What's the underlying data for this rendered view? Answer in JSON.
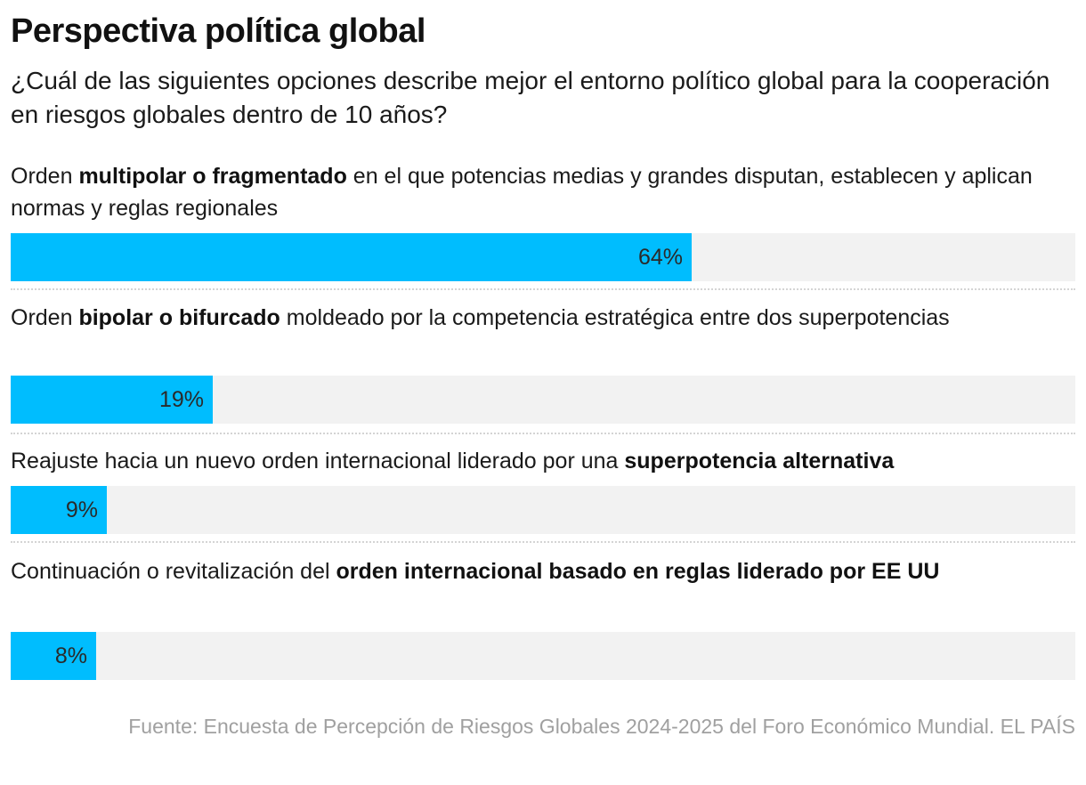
{
  "chart_data": {
    "type": "bar",
    "orientation": "horizontal",
    "title": "Perspectiva política global",
    "subtitle": "¿Cuál de las siguientes opciones describe mejor el entorno político global para la cooperación en riesgos globales dentro de 10 años?",
    "categories": [
      "Orden multipolar o fragmentado en el que potencias medias y grandes disputan, establecen y aplican normas y reglas regionales",
      "Orden bipolar o bifurcado moldeado por la competencia estratégica entre dos superpotencias",
      "Reajuste hacia un nuevo orden internacional liderado por una superpotencia alternativa",
      "Continuación o revitalización del orden internacional basado en reglas liderado por EE UU"
    ],
    "values": [
      64,
      19,
      9,
      8
    ],
    "unit": "%",
    "xlim": [
      0,
      100
    ],
    "grid": false,
    "legend": "none",
    "bar_color": "#00bdfe",
    "track_color": "#f2f2f2",
    "items": [
      {
        "pre": "Orden ",
        "bold": "multipolar o fragmentado",
        "post": " en el que potencias medias y grandes disputan, establecen y aplican normas y reglas regionales",
        "value": 64,
        "label": "64%"
      },
      {
        "pre": "Orden ",
        "bold": "bipolar o bifurcado",
        "post": " moldeado por la competencia estratégica entre dos superpotencias",
        "value": 19,
        "label": "19%"
      },
      {
        "pre": "Reajuste hacia un nuevo orden internacional liderado por una ",
        "bold": "superpotencia alternativa",
        "post": "",
        "value": 9,
        "label": "9%"
      },
      {
        "pre": "Continuación o revitalización del ",
        "bold": "orden internacional basado en reglas liderado por EE UU",
        "post": "",
        "value": 8,
        "label": "8%"
      }
    ],
    "source": "Fuente: Encuesta de Percepción de Riesgos Globales 2024-2025 del Foro Económico Mundial. EL PAÍS"
  }
}
